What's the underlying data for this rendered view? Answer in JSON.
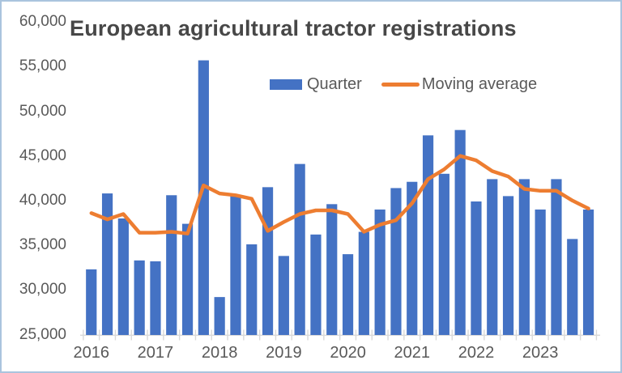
{
  "frame": {
    "background": "#FFFFFF",
    "border_color": "#AAC4DE"
  },
  "title": {
    "text": "European agricultural tractor registrations",
    "color": "#474747"
  },
  "legend": {
    "items": [
      {
        "label": "Quarter",
        "marker": "bar-swatch",
        "color": "#4472C4"
      },
      {
        "label": "Moving average",
        "marker": "line-swatch",
        "color": "#ED7D31"
      }
    ],
    "text_color": "#595959"
  },
  "axes": {
    "y_tick_values": [
      25000,
      30000,
      35000,
      40000,
      45000,
      50000,
      55000,
      60000
    ],
    "y_tick_labels": [
      "25,000",
      "30,000",
      "35,000",
      "40,000",
      "45,000",
      "50,000",
      "55,000",
      "60,000"
    ],
    "x_year_labels": [
      "2016",
      "2017",
      "2018",
      "2019",
      "2020",
      "2021",
      "2022",
      "2023"
    ],
    "text_color": "#595959",
    "axis_line_color": "#D9D9D9"
  },
  "chart_data": {
    "type": "bar",
    "title": "European agricultural tractor registrations",
    "categories": [
      "2016 Q1",
      "2016 Q2",
      "2016 Q3",
      "2016 Q4",
      "2017 Q1",
      "2017 Q2",
      "2017 Q3",
      "2017 Q4",
      "2018 Q1",
      "2018 Q2",
      "2018 Q3",
      "2018 Q4",
      "2019 Q1",
      "2019 Q2",
      "2019 Q3",
      "2019 Q4",
      "2020 Q1",
      "2020 Q2",
      "2020 Q3",
      "2020 Q4",
      "2021 Q1",
      "2021 Q2",
      "2021 Q3",
      "2021 Q4",
      "2022 Q1",
      "2022 Q2",
      "2022 Q3",
      "2022 Q4",
      "2023 Q1",
      "2023 Q2",
      "2023 Q3",
      "2023 Q4"
    ],
    "series": [
      {
        "name": "Quarter",
        "type": "bar",
        "color": "#4472C4",
        "values": [
          32300,
          40800,
          38000,
          33300,
          33200,
          40600,
          37400,
          55700,
          29200,
          40600,
          35100,
          41500,
          33800,
          44100,
          36200,
          39600,
          34000,
          36500,
          39000,
          41400,
          42100,
          47300,
          43000,
          47900,
          39900,
          42400,
          40500,
          42400,
          39000,
          42400,
          35700,
          39000
        ]
      },
      {
        "name": "Moving average",
        "type": "line",
        "color": "#ED7D31",
        "values": [
          38600,
          37900,
          38500,
          36400,
          36400,
          36500,
          36300,
          41700,
          40800,
          40600,
          40200,
          36600,
          37600,
          38500,
          38900,
          38900,
          38500,
          36500,
          37300,
          37800,
          39700,
          42400,
          43500,
          45000,
          44500,
          43300,
          42700,
          41300,
          41100,
          41100,
          40000,
          39100
        ]
      }
    ],
    "ylim": [
      25000,
      60000
    ],
    "y_tick_step": 5000,
    "grid": false,
    "legend_position": "top"
  }
}
